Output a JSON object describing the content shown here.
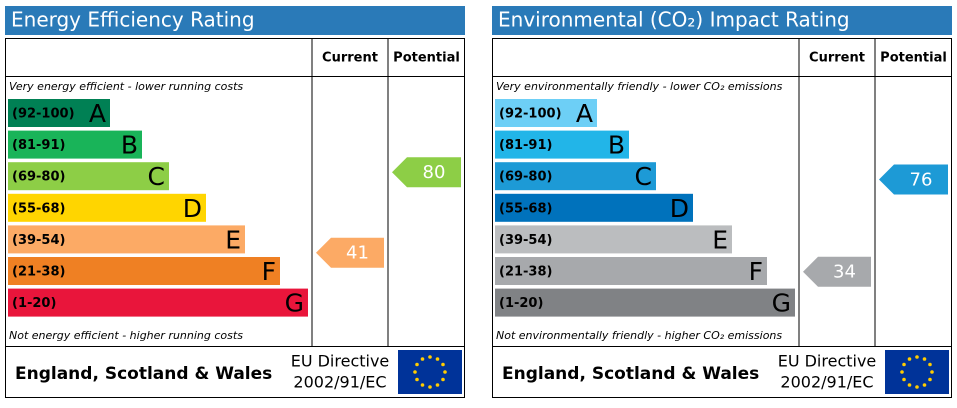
{
  "chart_data": [
    {
      "type": "rating",
      "title": "Energy Efficiency Rating",
      "columns": [
        "Current",
        "Potential"
      ],
      "top_note": "Very energy efficient - lower running costs",
      "bottom_note": "Not energy efficient - higher running costs",
      "bands": [
        {
          "label": "(92-100)",
          "letter": "A",
          "color": "#008054"
        },
        {
          "label": "(81-91)",
          "letter": "B",
          "color": "#19b459"
        },
        {
          "label": "(69-80)",
          "letter": "C",
          "color": "#8dce46"
        },
        {
          "label": "(55-68)",
          "letter": "D",
          "color": "#ffd500"
        },
        {
          "label": "(39-54)",
          "letter": "E",
          "color": "#fcaa65"
        },
        {
          "label": "(21-38)",
          "letter": "F",
          "color": "#ef8023"
        },
        {
          "label": "(1-20)",
          "letter": "G",
          "color": "#e9153b"
        }
      ],
      "current": 41,
      "potential": 80,
      "region": "England, Scotland & Wales",
      "directive": [
        "EU Directive",
        "2002/91/EC"
      ]
    },
    {
      "type": "rating",
      "title": "Environmental (CO₂) Impact Rating",
      "columns": [
        "Current",
        "Potential"
      ],
      "top_note": "Very environmentally friendly - lower CO₂ emissions",
      "bottom_note": "Not environmentally friendly - higher CO₂ emissions",
      "bands": [
        {
          "label": "(92-100)",
          "letter": "A",
          "color": "#6dcff6"
        },
        {
          "label": "(81-91)",
          "letter": "B",
          "color": "#22b5e8"
        },
        {
          "label": "(69-80)",
          "letter": "C",
          "color": "#1d9ad6"
        },
        {
          "label": "(55-68)",
          "letter": "D",
          "color": "#0072bc"
        },
        {
          "label": "(39-54)",
          "letter": "E",
          "color": "#bbbdbf"
        },
        {
          "label": "(21-38)",
          "letter": "F",
          "color": "#a7a9ac"
        },
        {
          "label": "(1-20)",
          "letter": "G",
          "color": "#808285"
        }
      ],
      "current": 34,
      "potential": 76,
      "region": "England, Scotland & Wales",
      "directive": [
        "EU Directive",
        "2002/91/EC"
      ]
    }
  ]
}
